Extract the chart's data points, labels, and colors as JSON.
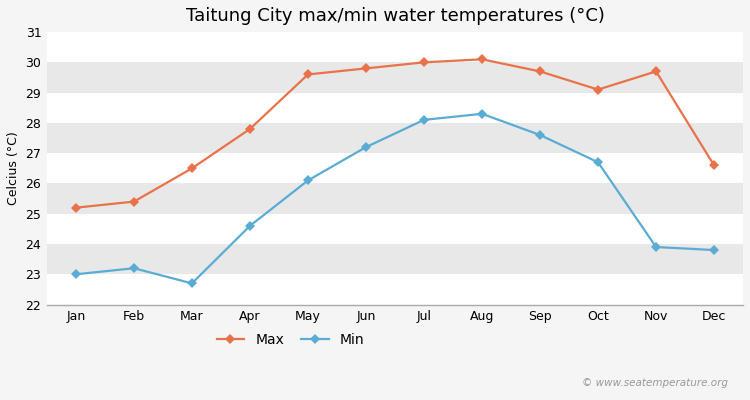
{
  "title": "Taitung City max/min water temperatures (°C)",
  "ylabel": "Celcius (°C)",
  "months": [
    "Jan",
    "Feb",
    "Mar",
    "Apr",
    "May",
    "Jun",
    "Jul",
    "Aug",
    "Sep",
    "Oct",
    "Nov",
    "Dec"
  ],
  "max_temps": [
    25.2,
    25.4,
    26.5,
    27.8,
    29.6,
    29.8,
    30.0,
    30.1,
    29.7,
    29.1,
    29.7,
    26.6
  ],
  "min_temps": [
    23.0,
    23.2,
    22.7,
    24.6,
    26.1,
    27.2,
    28.1,
    28.3,
    27.6,
    26.7,
    23.9,
    23.8
  ],
  "max_color": "#e8724a",
  "min_color": "#5bacd4",
  "background_color": "#f5f5f5",
  "plot_bg_color": "#e8e8e8",
  "stripe_color": "#f0f0f0",
  "ylim": [
    22,
    31
  ],
  "yticks": [
    22,
    23,
    24,
    25,
    26,
    27,
    28,
    29,
    30,
    31
  ],
  "grid_color": "#ffffff",
  "watermark": "© www.seatemperature.org",
  "legend_max": "Max",
  "legend_min": "Min",
  "title_fontsize": 13,
  "axis_label_fontsize": 9,
  "tick_fontsize": 9,
  "legend_fontsize": 10,
  "marker": "D",
  "markersize": 5,
  "linewidth": 1.6
}
